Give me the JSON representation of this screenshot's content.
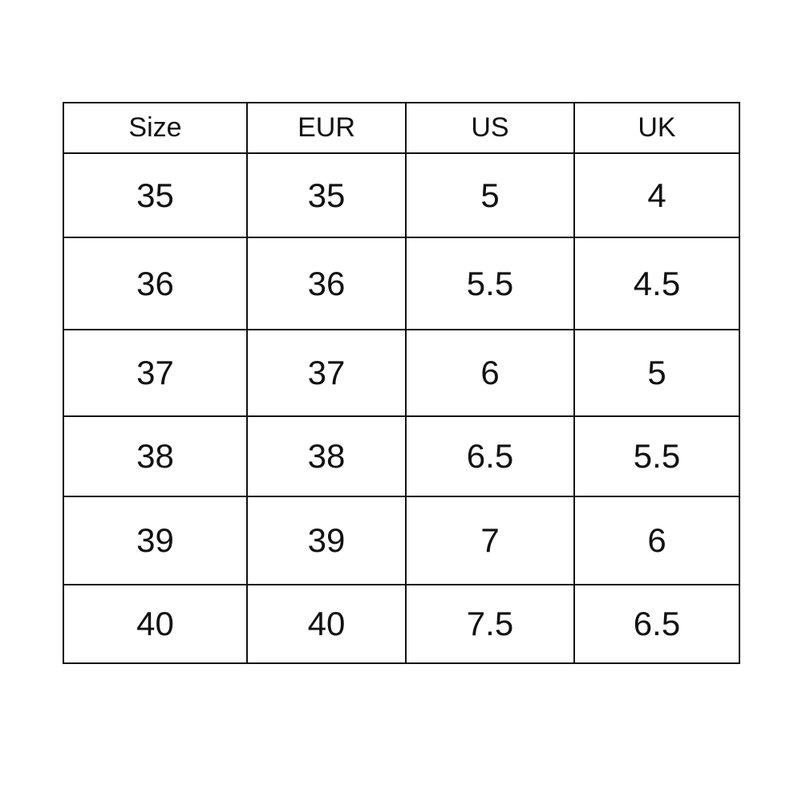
{
  "table": {
    "headers": [
      "Size",
      "EUR",
      "US",
      "UK"
    ],
    "rows": [
      [
        "35",
        "35",
        "5",
        "4"
      ],
      [
        "36",
        "36",
        "5.5",
        "4.5"
      ],
      [
        "37",
        "37",
        "6",
        "5"
      ],
      [
        "38",
        "38",
        "6.5",
        "5.5"
      ],
      [
        "39",
        "39",
        "7",
        "6"
      ],
      [
        "40",
        "40",
        "7.5",
        "6.5"
      ]
    ]
  }
}
